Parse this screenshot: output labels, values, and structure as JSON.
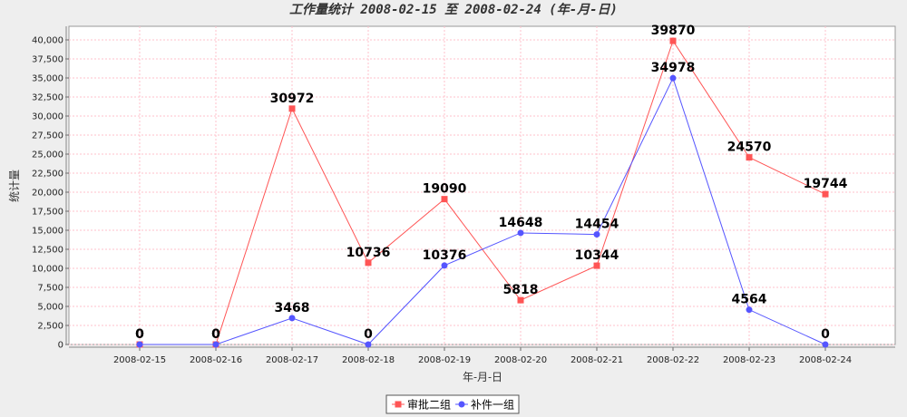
{
  "chart_data": {
    "type": "line",
    "title": "工作量统计 2008-02-15 至 2008-02-24 (年-月-日)",
    "xlabel": "年-月-日",
    "ylabel": "统计量",
    "ylim": [
      0,
      40000
    ],
    "yticks": [
      "0",
      "2,500",
      "5,000",
      "7,500",
      "10,000",
      "12,500",
      "15,000",
      "17,500",
      "20,000",
      "22,500",
      "25,000",
      "27,500",
      "30,000",
      "32,500",
      "35,000",
      "37,500",
      "40,000"
    ],
    "categories": [
      "2008-02-15",
      "2008-02-16",
      "2008-02-17",
      "2008-02-18",
      "2008-02-19",
      "2008-02-20",
      "2008-02-21",
      "2008-02-22",
      "2008-02-23",
      "2008-02-24"
    ],
    "grid": true,
    "legend_position": "bottom",
    "series": [
      {
        "name": "审批二组",
        "color": "#ff5555",
        "marker": "square",
        "values": [
          0,
          0,
          30972,
          10736,
          19090,
          5818,
          10344,
          39870,
          24570,
          19744
        ]
      },
      {
        "name": "补件一组",
        "color": "#5555ff",
        "marker": "circle",
        "values": [
          0,
          0,
          3468,
          0,
          10376,
          14648,
          14454,
          34978,
          4564,
          0
        ]
      }
    ]
  }
}
